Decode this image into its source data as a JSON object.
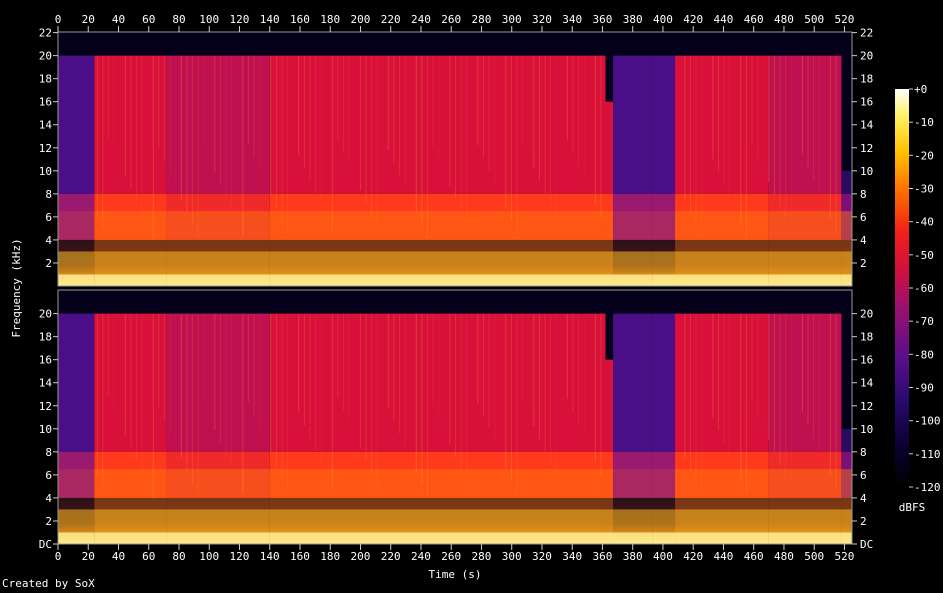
{
  "chart_data": {
    "type": "heatmap",
    "title": "",
    "footer": "Created by SoX",
    "xlabel": "Time (s)",
    "ylabel": "Frequency (kHz)",
    "colorbar_label": "dBFS",
    "xlim": [
      0,
      525
    ],
    "ylim": [
      0,
      22.05
    ],
    "x_ticks": [
      "0",
      "20",
      "40",
      "60",
      "80",
      "100",
      "120",
      "140",
      "160",
      "180",
      "200",
      "220",
      "240",
      "260",
      "280",
      "300",
      "320",
      "340",
      "360",
      "380",
      "400",
      "420",
      "440",
      "460",
      "480",
      "500",
      "520"
    ],
    "y_ticks_top": [
      "2",
      "4",
      "6",
      "8",
      "10",
      "12",
      "14",
      "16",
      "18",
      "20",
      "22"
    ],
    "y_ticks_bottom": [
      "DC",
      "2",
      "4",
      "6",
      "8",
      "10",
      "12",
      "14",
      "16",
      "18",
      "20"
    ],
    "colorbar_ticks": [
      "+0",
      "-10",
      "-20",
      "-30",
      "-40",
      "-50",
      "-60",
      "-70",
      "-80",
      "-90",
      "-100",
      "-110",
      "-120"
    ],
    "colorbar_range": [
      -120,
      0
    ],
    "channels": 2,
    "segments": [
      {
        "start": 0,
        "end": 24,
        "cutoff_khz": 20.0,
        "level": "purple"
      },
      {
        "start": 24,
        "end": 72,
        "cutoff_khz": 20.0,
        "level": "red"
      },
      {
        "start": 72,
        "end": 140,
        "cutoff_khz": 20.0,
        "level": "red-purple"
      },
      {
        "start": 140,
        "end": 362,
        "cutoff_khz": 20.0,
        "level": "red"
      },
      {
        "start": 362,
        "end": 367,
        "cutoff_khz": 16.0,
        "level": "red"
      },
      {
        "start": 367,
        "end": 393,
        "cutoff_khz": 20.0,
        "level": "purple"
      },
      {
        "start": 393,
        "end": 408,
        "cutoff_khz": 20.0,
        "level": "purple"
      },
      {
        "start": 408,
        "end": 470,
        "cutoff_khz": 20.0,
        "level": "red"
      },
      {
        "start": 470,
        "end": 518,
        "cutoff_khz": 20.0,
        "level": "red-purple"
      },
      {
        "start": 518,
        "end": 525,
        "cutoff_khz": 10.0,
        "level": "fade"
      }
    ]
  }
}
